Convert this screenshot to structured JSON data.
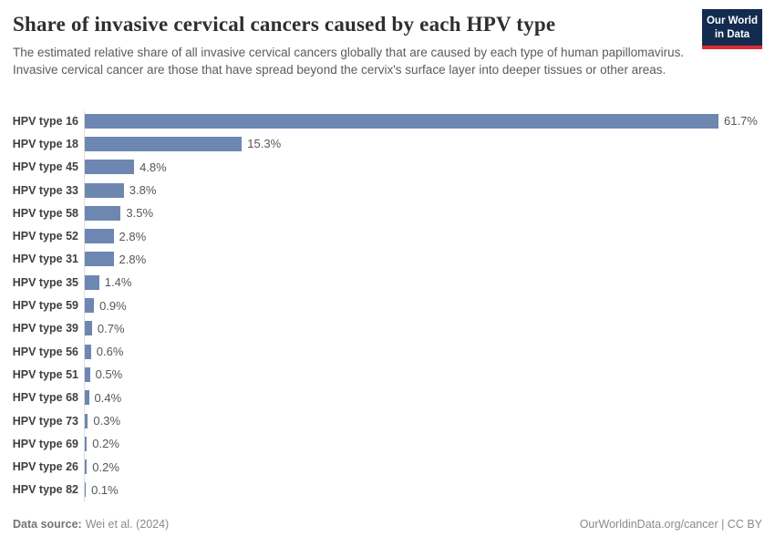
{
  "header": {
    "title": "Share of invasive cervical cancers caused by each HPV type",
    "subtitle": "The estimated relative share of all invasive cervical cancers globally that are caused by each type of human papillomavirus. Invasive cervical cancer are those that have spread beyond the cervix's surface layer into deeper tissues or other areas."
  },
  "logo": {
    "line1": "Our World",
    "line2": "in Data",
    "bg_color": "#122b4e",
    "accent_color": "#dd2a33"
  },
  "chart_data": {
    "type": "bar",
    "orientation": "horizontal",
    "title": "Share of invasive cervical cancers caused by each HPV type",
    "categories": [
      "HPV type 16",
      "HPV type 18",
      "HPV type 45",
      "HPV type 33",
      "HPV type 58",
      "HPV type 52",
      "HPV type 31",
      "HPV type 35",
      "HPV type 59",
      "HPV type 39",
      "HPV type 56",
      "HPV type 51",
      "HPV type 68",
      "HPV type 73",
      "HPV type 69",
      "HPV type 26",
      "HPV type 82"
    ],
    "values": [
      61.7,
      15.3,
      4.8,
      3.8,
      3.5,
      2.8,
      2.8,
      1.4,
      0.9,
      0.7,
      0.6,
      0.5,
      0.4,
      0.3,
      0.2,
      0.2,
      0.1
    ],
    "value_suffix": "%",
    "value_decimals": 1,
    "xlim": [
      0,
      61.7
    ],
    "grid": false,
    "legend": "none",
    "bar_color": "#6d87b1",
    "axis_line_color": "#dddddd"
  },
  "footer": {
    "source_label": "Data source:",
    "source_value": "Wei et al. (2024)",
    "right_text": "OurWorldinData.org/cancer | CC BY"
  },
  "colors": {
    "title_text": "#2f2f2f",
    "subtitle_text": "#5b5b5b",
    "category_label_text": "#3f3f3f",
    "value_label_text": "#565656",
    "footer_text": "#8a8a8a",
    "bar": "#6d87b1"
  }
}
